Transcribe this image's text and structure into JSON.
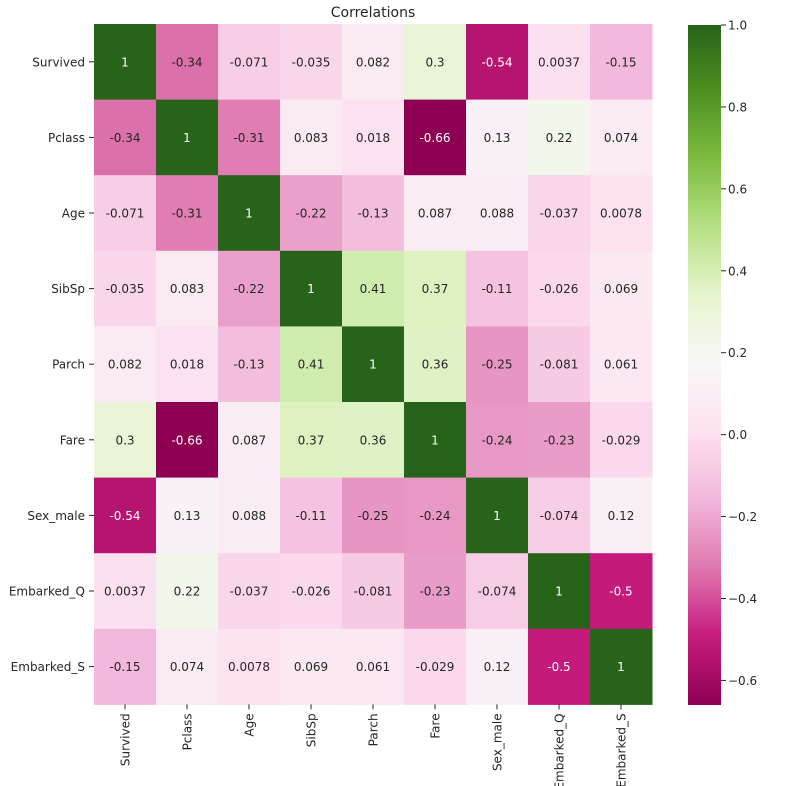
{
  "chart_data": {
    "type": "heatmap",
    "title": "Correlations",
    "row_labels": [
      "Survived",
      "Pclass",
      "Age",
      "SibSp",
      "Parch",
      "Fare",
      "Sex_male",
      "Embarked_Q",
      "Embarked_S"
    ],
    "col_labels": [
      "Survived",
      "Pclass",
      "Age",
      "SibSp",
      "Parch",
      "Fare",
      "Sex_male",
      "Embarked_Q",
      "Embarked_S"
    ],
    "values": [
      [
        1,
        -0.34,
        -0.071,
        -0.035,
        0.082,
        0.3,
        -0.54,
        0.0037,
        -0.15
      ],
      [
        -0.34,
        1,
        -0.31,
        0.083,
        0.018,
        -0.66,
        0.13,
        0.22,
        0.074
      ],
      [
        -0.071,
        -0.31,
        1,
        -0.22,
        -0.13,
        0.087,
        0.088,
        -0.037,
        0.0078
      ],
      [
        -0.035,
        0.083,
        -0.22,
        1,
        0.41,
        0.37,
        -0.11,
        -0.026,
        0.069
      ],
      [
        0.082,
        0.018,
        -0.13,
        0.41,
        1,
        0.36,
        -0.25,
        -0.081,
        0.061
      ],
      [
        0.3,
        -0.66,
        0.087,
        0.37,
        0.36,
        1,
        -0.24,
        -0.23,
        -0.029
      ],
      [
        -0.54,
        0.13,
        0.088,
        -0.11,
        -0.25,
        -0.24,
        1,
        -0.074,
        0.12
      ],
      [
        0.0037,
        0.22,
        -0.037,
        -0.026,
        -0.081,
        -0.23,
        -0.074,
        1,
        -0.5
      ],
      [
        -0.15,
        0.074,
        0.0078,
        0.069,
        0.061,
        -0.029,
        0.12,
        -0.5,
        1
      ]
    ],
    "cell_labels": [
      [
        "1",
        "-0.34",
        "-0.071",
        "-0.035",
        "0.082",
        "0.3",
        "-0.54",
        "0.0037",
        "-0.15"
      ],
      [
        "-0.34",
        "1",
        "-0.31",
        "0.083",
        "0.018",
        "-0.66",
        "0.13",
        "0.22",
        "0.074"
      ],
      [
        "-0.071",
        "-0.31",
        "1",
        "-0.22",
        "-0.13",
        "0.087",
        "0.088",
        "-0.037",
        "0.0078"
      ],
      [
        "-0.035",
        "0.083",
        "-0.22",
        "1",
        "0.41",
        "0.37",
        "-0.11",
        "-0.026",
        "0.069"
      ],
      [
        "0.082",
        "0.018",
        "-0.13",
        "0.41",
        "1",
        "0.36",
        "-0.25",
        "-0.081",
        "0.061"
      ],
      [
        "0.3",
        "-0.66",
        "0.087",
        "0.37",
        "0.36",
        "1",
        "-0.24",
        "-0.23",
        "-0.029"
      ],
      [
        "-0.54",
        "0.13",
        "0.088",
        "-0.11",
        "-0.25",
        "-0.24",
        "1",
        "-0.074",
        "0.12"
      ],
      [
        "0.0037",
        "0.22",
        "-0.037",
        "-0.026",
        "-0.081",
        "-0.23",
        "-0.074",
        "1",
        "-0.5"
      ],
      [
        "-0.15",
        "0.074",
        "0.0078",
        "0.069",
        "0.061",
        "-0.029",
        "0.12",
        "-0.5",
        "1"
      ]
    ],
    "colormap": "PiYG",
    "color_range": [
      -0.66,
      1.0
    ],
    "colorbar_ticks": [
      1.0,
      0.8,
      0.6,
      0.4,
      0.2,
      0.0,
      -0.2,
      -0.4,
      -0.6
    ],
    "colorbar_tick_labels": [
      "1.0",
      "0.8",
      "0.6",
      "0.4",
      "0.2",
      "0.0",
      "−0.2",
      "−0.4",
      "−0.6"
    ],
    "colormap_stops": [
      "#8e0152",
      "#c51b7d",
      "#de77ae",
      "#f1b6da",
      "#fde0ef",
      "#f7f7f7",
      "#e6f5d0",
      "#b8e186",
      "#7fbc41",
      "#4d9221",
      "#276419"
    ],
    "xlabel": "",
    "ylabel": ""
  }
}
